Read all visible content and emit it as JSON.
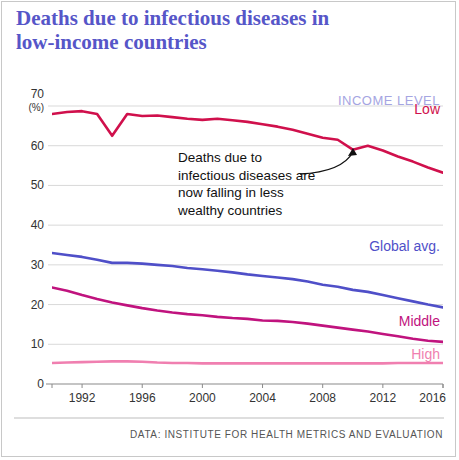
{
  "chart_data": {
    "type": "line",
    "title": "Deaths due to infectious diseases in low-income countries",
    "y_unit": "(%)",
    "legend_title": "INCOME LEVEL",
    "annotation": [
      "Deaths due to",
      "infectious diseases are",
      "now falling in less",
      "wealthy countries"
    ],
    "source": "DATA: INSTITUTE FOR HEALTH METRICS AND EVALUATION",
    "x": [
      1990,
      1991,
      1992,
      1993,
      1994,
      1995,
      1996,
      1997,
      1998,
      1999,
      2000,
      2001,
      2002,
      2003,
      2004,
      2005,
      2006,
      2007,
      2008,
      2009,
      2010,
      2011,
      2012,
      2013,
      2014,
      2015,
      2016
    ],
    "xlim": [
      1990,
      2016
    ],
    "xticks": [
      1992,
      1996,
      2000,
      2004,
      2008,
      2012,
      2016
    ],
    "ylim": [
      0,
      70
    ],
    "yticks": [
      0,
      10,
      20,
      30,
      40,
      50,
      60,
      70
    ],
    "grid": true,
    "series": [
      {
        "name": "Low",
        "color": "#d0104c",
        "values": [
          68,
          68.5,
          68.7,
          68,
          62.5,
          68,
          67.5,
          67.6,
          67.2,
          66.8,
          66.5,
          66.8,
          66.4,
          66,
          65.4,
          64.8,
          64,
          63,
          62,
          61.5,
          59,
          60,
          58.8,
          57.3,
          56,
          54.5,
          53.2
        ]
      },
      {
        "name": "Global avg.",
        "color": "#4f4fc8",
        "values": [
          33,
          32.5,
          32,
          31.3,
          30.5,
          30.5,
          30.3,
          30,
          29.7,
          29.2,
          28.9,
          28.5,
          28.1,
          27.6,
          27.2,
          26.8,
          26.4,
          25.8,
          25,
          24.5,
          23.7,
          23.2,
          22.4,
          21.6,
          20.8,
          20,
          19.3
        ]
      },
      {
        "name": "Middle",
        "color": "#c0137e",
        "values": [
          24.3,
          23.5,
          22.4,
          21.4,
          20.5,
          19.8,
          19.1,
          18.5,
          18,
          17.6,
          17.3,
          16.9,
          16.6,
          16.4,
          16,
          15.9,
          15.6,
          15.2,
          14.7,
          14.2,
          13.7,
          13.2,
          12.6,
          12,
          11.4,
          10.9,
          10.6
        ]
      },
      {
        "name": "High",
        "color": "#f07fb0",
        "values": [
          5.3,
          5.4,
          5.5,
          5.6,
          5.7,
          5.7,
          5.6,
          5.4,
          5.3,
          5.3,
          5.2,
          5.2,
          5.2,
          5.2,
          5.2,
          5.2,
          5.2,
          5.2,
          5.2,
          5.2,
          5.2,
          5.2,
          5.2,
          5.3,
          5.3,
          5.3,
          5.3
        ]
      }
    ]
  }
}
